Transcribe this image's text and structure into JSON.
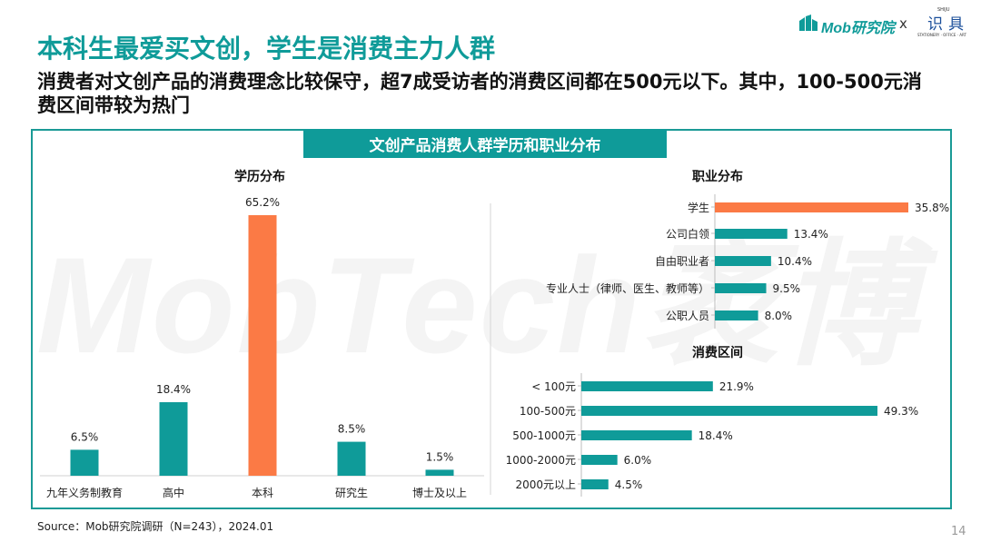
{
  "watermark": "MobTech袤博",
  "title": "本科生最爱买文创，学生是消费主力人群",
  "subtitle": "消费者对文创产品的消费理念比较保守，超7成受访者的消费区间都在500元以下。其中，100-500元消费区间带较为热门",
  "logo": {
    "text": "Mob研究院",
    "x": "x",
    "partner_main": "识具",
    "partner_small": "SHIJU",
    "partner_sub": "STATIONERY · OFFICE · ART"
  },
  "panel_title": "文创产品消费人群学历和职业分布",
  "footnote": "Source：Mob研究院调研（N=243），2024.01",
  "page_number": "14",
  "colors": {
    "teal": "#0f9b99",
    "orange": "#fb7a45"
  },
  "chart_data": [
    {
      "type": "bar",
      "title": "学历分布",
      "categories": [
        "九年义务制教育",
        "高中",
        "本科",
        "研究生",
        "博士及以上"
      ],
      "values": [
        6.5,
        18.4,
        65.2,
        8.5,
        1.5
      ],
      "labels": [
        "6.5%",
        "18.4%",
        "65.2%",
        "8.5%",
        "1.5%"
      ],
      "highlight_index": 2,
      "unit": "%"
    },
    {
      "type": "bar",
      "orientation": "horizontal",
      "title": "职业分布",
      "categories": [
        "学生",
        "公司白领",
        "自由职业者",
        "专业人士（律师、医生、教师等）",
        "公职人员"
      ],
      "values": [
        35.8,
        13.4,
        10.4,
        9.5,
        8.0
      ],
      "labels": [
        "35.8%",
        "13.4%",
        "10.4%",
        "9.5%",
        "8.0%"
      ],
      "highlight_index": 0,
      "unit": "%"
    },
    {
      "type": "bar",
      "orientation": "horizontal",
      "title": "消费区间",
      "categories": [
        "< 100元",
        "100-500元",
        "500-1000元",
        "1000-2000元",
        "2000元以上"
      ],
      "values": [
        21.9,
        49.3,
        18.4,
        6.0,
        4.5
      ],
      "labels": [
        "21.9%",
        "49.3%",
        "18.4%",
        "6.0%",
        "4.5%"
      ],
      "unit": "%"
    }
  ]
}
